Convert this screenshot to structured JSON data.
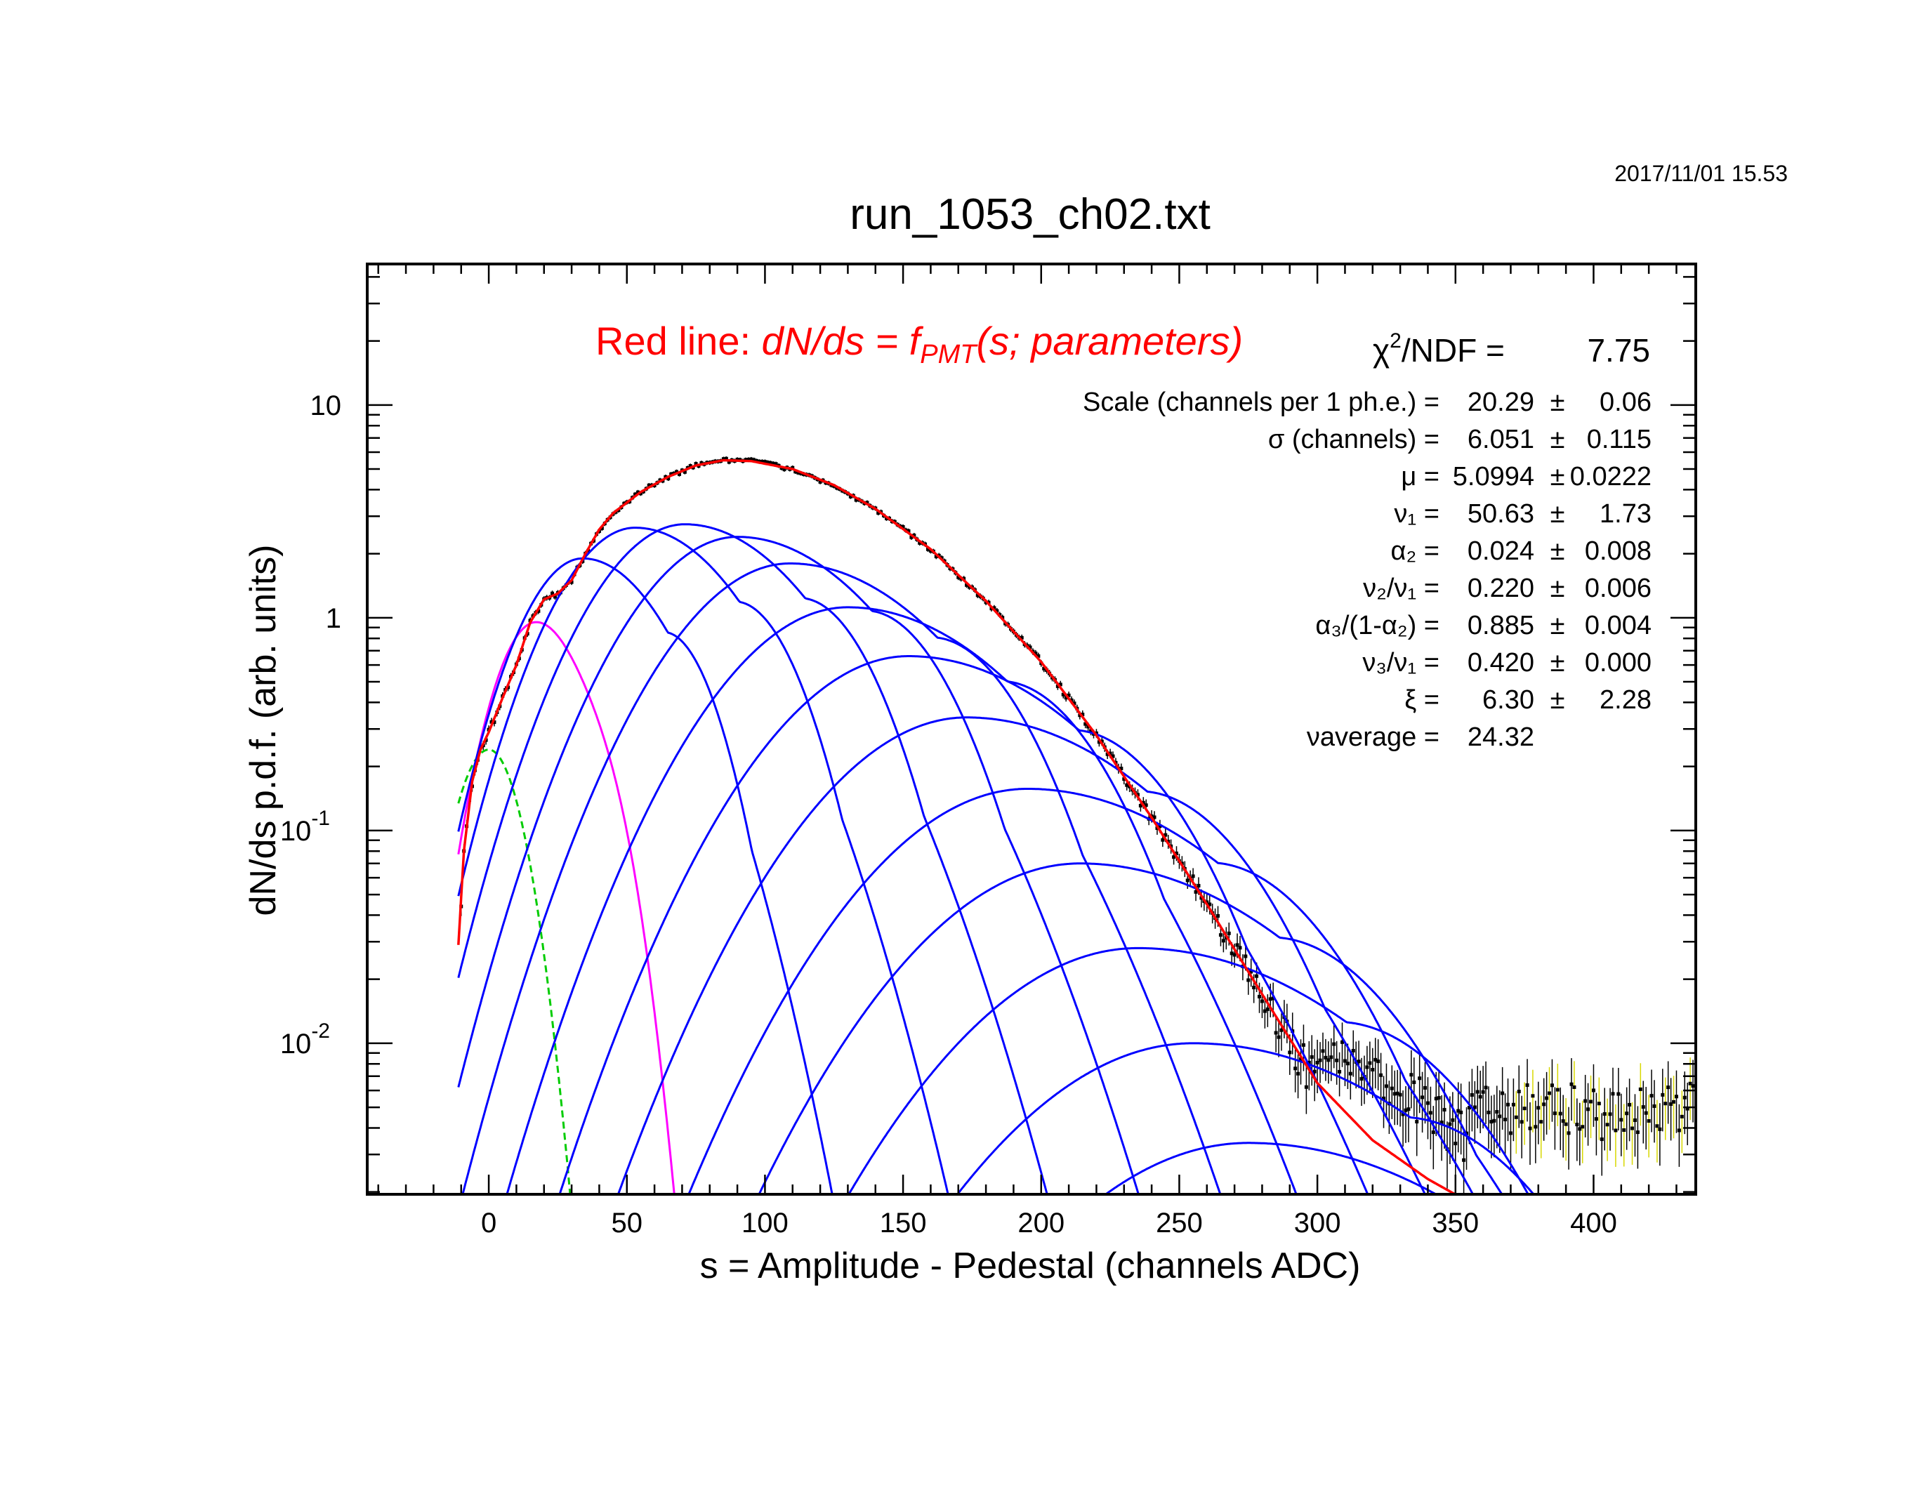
{
  "timestamp": "2017/11/01   15.53",
  "chart_data": {
    "type": "scatter",
    "title": "run_1053_ch02.txt",
    "xlabel": "s = Amplitude - Pedestal (channels ADC)",
    "ylabel": "dN/ds p.d.f. (arb. units)",
    "xlim": [
      -44,
      437
    ],
    "ylim": [
      0.00195,
      46
    ],
    "yscale": "log",
    "x_ticks": [
      "0",
      "50",
      "100",
      "150",
      "200",
      "250",
      "300",
      "350",
      "400"
    ],
    "y_ticks": [
      {
        "base": "10",
        "exp": "-2",
        "value": 0.01
      },
      {
        "base": "10",
        "exp": "-1",
        "value": 0.1
      },
      {
        "base": "1",
        "exp": "",
        "value": 1
      },
      {
        "base": "10",
        "exp": "",
        "value": 10
      }
    ],
    "grid": false,
    "annotation": {
      "prefix": "Red line: ",
      "lhs": "dN/ds = f",
      "sub": "PMT",
      "rhs": "(s; parameters)",
      "color": "#ff0000"
    },
    "fit_stats": {
      "chi2_label": "/NDF   =",
      "chi2_symbol": "χ",
      "chi2_exp": "2",
      "chi2_value": "7.75",
      "rows": [
        {
          "label": "Scale (channels per 1 ph.e.) =",
          "value": "20.29",
          "pm": "±",
          "err": "0.06"
        },
        {
          "label": "σ (channels) =",
          "value": "6.051",
          "pm": "±",
          "err": "0.115"
        },
        {
          "label": "μ  =",
          "value": "5.0994",
          "pm": "±",
          "err": "0.0222"
        },
        {
          "label": "ν₁ =",
          "value": "50.63",
          "pm": "±",
          "err": "1.73"
        },
        {
          "label": "α₂ =",
          "value": "0.024",
          "pm": "±",
          "err": "0.008"
        },
        {
          "label": "ν₂/ν₁ =",
          "value": "0.220",
          "pm": "±",
          "err": "0.006"
        },
        {
          "label": "α₃/(1-α₂) =",
          "value": "0.885",
          "pm": "±",
          "err": "0.004"
        },
        {
          "label": "ν₃/ν₁ =",
          "value": "0.420",
          "pm": "±",
          "err": "0.000"
        },
        {
          "label": "ξ =",
          "value": "6.30",
          "pm": "±",
          "err": "2.28"
        },
        {
          "label": "νaverage =",
          "value": "24.32",
          "pm": "",
          "err": ""
        }
      ]
    },
    "series": [
      {
        "role": "data points",
        "style": "points with error bars",
        "color": "#000000"
      },
      {
        "role": "total fit",
        "style": "line",
        "color": "#ff0000"
      },
      {
        "role": "pedestal",
        "style": "dashed line",
        "color": "#00cc00",
        "peak_x": 0,
        "peak_y": 0.24
      },
      {
        "role": "1 ph.e.",
        "style": "line",
        "color": "#ff00ff",
        "peak_x": 17,
        "peak_y": 0.95
      },
      {
        "role": "n ph.e.",
        "style": "line",
        "color": "#0000ff",
        "peaks": [
          {
            "x": 34,
            "y": 1.9
          },
          {
            "x": 53,
            "y": 2.65
          },
          {
            "x": 71,
            "y": 2.75
          },
          {
            "x": 90,
            "y": 2.4
          },
          {
            "x": 109,
            "y": 1.8
          },
          {
            "x": 130,
            "y": 1.12
          },
          {
            "x": 152,
            "y": 0.66
          },
          {
            "x": 173,
            "y": 0.34
          },
          {
            "x": 195,
            "y": 0.157
          },
          {
            "x": 214,
            "y": 0.07
          },
          {
            "x": 235,
            "y": 0.028
          },
          {
            "x": 255,
            "y": 0.01
          },
          {
            "x": 275,
            "y": 0.0034
          }
        ]
      }
    ]
  }
}
